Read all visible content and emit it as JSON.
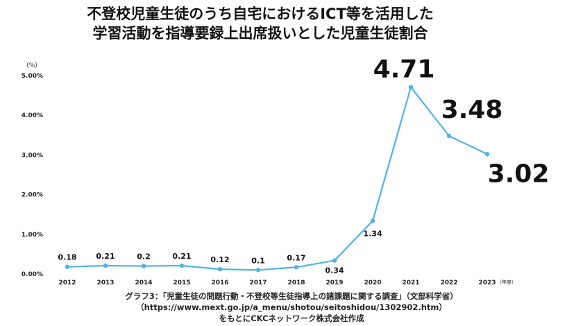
{
  "title_lines": [
    "不登校児童生徒のうち自宅におけるICT等を活用した",
    "学習活動を指導要録上出席扱いとした児童生徒割合"
  ],
  "caption_lines": [
    "グラフ3：「児童生徒の問題行動・不登校等生徒指導上の諸課題に関する調査」（文部科学省）",
    "（https://www.mext.go.jp/a_menu/shotou/seitoshidou/1302902.htm）",
    "をもとにCKCネットワーク株式会社作成"
  ],
  "chart_data": {
    "type": "line",
    "title": "不登校児童生徒のうち自宅におけるICT等を活用した学習活動を指導要録上出席扱いとした児童生徒割合",
    "y_unit_label": "（%）",
    "x_unit_label": "（年度）",
    "categories": [
      "2012",
      "2013",
      "2014",
      "2015",
      "2016",
      "2017",
      "2018",
      "2019",
      "2020",
      "2021",
      "2022",
      "2023"
    ],
    "values": [
      0.18,
      0.21,
      0.2,
      0.21,
      0.12,
      0.1,
      0.17,
      0.34,
      1.34,
      4.71,
      3.48,
      3.02
    ],
    "data_labels": [
      "0.18",
      "0.21",
      "0.2",
      "0.21",
      "0.12",
      "0.1",
      "0.17",
      "0.34",
      "1.34",
      "4.71",
      "3.48",
      "3.02"
    ],
    "y_ticks": [
      "0.00%",
      "1.00%",
      "2.00%",
      "3.00%",
      "4.00%",
      "5.00%"
    ],
    "ylim": [
      0,
      5
    ],
    "grid": false,
    "line_color": "#4db3ea"
  }
}
